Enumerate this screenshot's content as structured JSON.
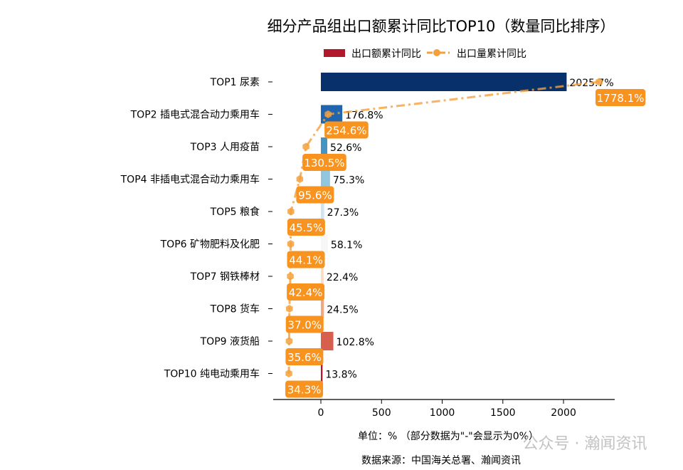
{
  "chart_data": {
    "type": "bar",
    "orientation": "horizontal",
    "title": "细分产品组出口额累计同比TOP10（数量同比排序）",
    "categories": [
      "TOP1 尿素",
      "TOP2 插电式混合动力乘用车",
      "TOP3 人用疫苗",
      "TOP4 非插电式混合动力乘用车",
      "TOP5 粮食",
      "TOP6 矿物肥料及化肥",
      "TOP7 钢铁棒材",
      "TOP8 货车",
      "TOP9 液货船",
      "TOP10 纯电动乘用车"
    ],
    "series": [
      {
        "name": "出口额累计同比",
        "type": "bar",
        "values": [
          2025.7,
          176.8,
          52.6,
          75.3,
          27.3,
          58.1,
          22.4,
          24.5,
          102.8,
          13.8
        ],
        "labels": [
          "2025.7%",
          "176.8%",
          "52.6%",
          "75.3%",
          "27.3%",
          "58.1%",
          "22.4%",
          "24.5%",
          "102.8%",
          "13.8%"
        ],
        "colors": [
          "#08306b",
          "#2166ac",
          "#4393c3",
          "#92c5de",
          "#d1e5f0",
          "#f7f7f7",
          "#fddbc7",
          "#f4a582",
          "#d6604d",
          "#b2182b"
        ]
      },
      {
        "name": "出口量累计同比",
        "type": "line",
        "style": "dash-dot",
        "marker": "hexagon",
        "color": "#f5a03c",
        "label_bg": "#f7931e",
        "values": [
          1778.1,
          254.6,
          130.5,
          95.6,
          45.5,
          44.1,
          42.4,
          37.0,
          35.6,
          34.3
        ],
        "labels": [
          "1778.1%",
          "254.6%",
          "130.5%",
          "95.6%",
          "45.5%",
          "44.1%",
          "42.4%",
          "37.0%",
          "35.6%",
          "34.3%"
        ]
      }
    ],
    "xlim": [
      -393,
      2422
    ],
    "line_axis_hidden_range": [
      -54,
      1866
    ],
    "xticks": [
      "0",
      "500",
      "1000",
      "1500",
      "2000"
    ],
    "xtick_values": [
      0,
      500,
      1000,
      1500,
      2000
    ],
    "xlabel": "单位：%  （部分数据为\"-\"会显示为0%）",
    "legend_position": "top-center",
    "grid": false,
    "source": "数据来源：中国海关总署、瀚闻资讯"
  },
  "watermark": "公众号 · 瀚闻资讯"
}
